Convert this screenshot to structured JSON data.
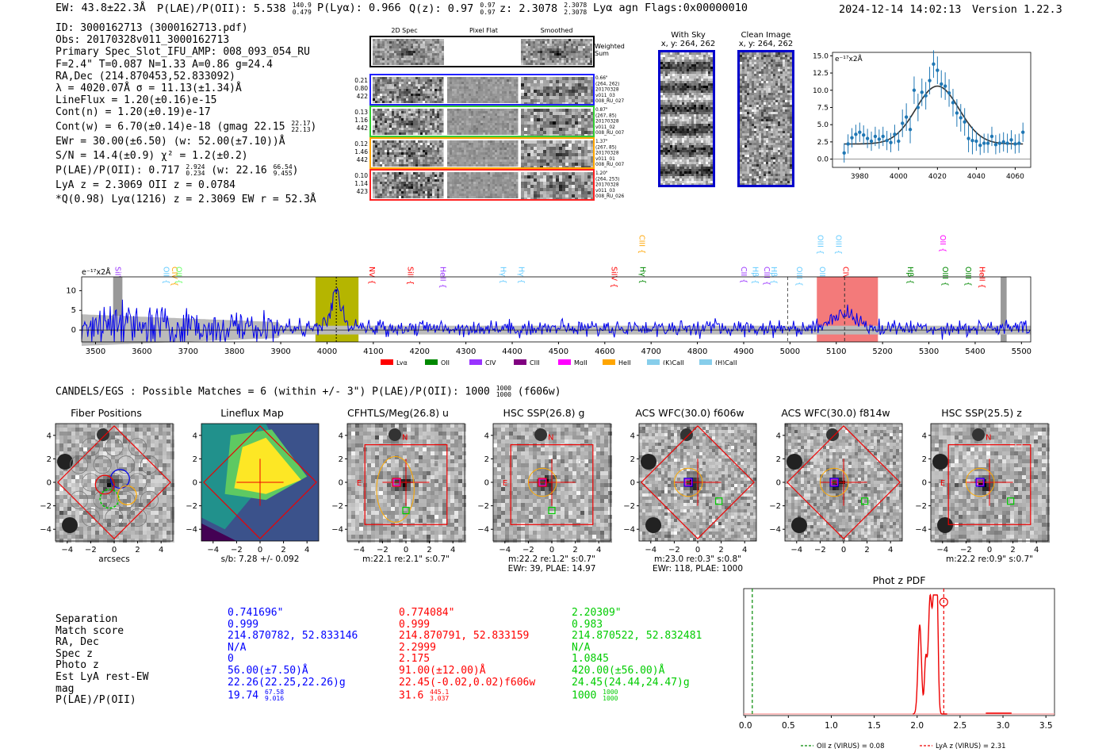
{
  "header": {
    "ew": "EW: 43.8±22.3Å",
    "plae": "P(LAE)/P(OII): 5.538",
    "plae_hi": "140.9",
    "plae_lo": "0.479",
    "plya": "P(Lyα): 0.966",
    "qz": "Q(z): 0.97",
    "qz_hi": "0.97",
    "qz_lo": "0.97",
    "z": "z: 2.3078",
    "z_hi": "2.3078",
    "z_lo": "2.3078",
    "tail": "Lyα  agn  Flags:0x00000010",
    "timestamp": "2024-12-14 14:02:13",
    "version": "Version 1.22.3"
  },
  "info": {
    "lines": [
      "ID: 3000162713 (3000162713.pdf)",
      "Obs: 20170328v011_3000162713",
      "Primary Spec_Slot_IFU_AMP: 008_093_054_RU",
      "F=2.4\"  T=0.087  N=1.33  A=0.86  g=24.4",
      "RA,Dec (214.870453,52.833092)",
      "λ = 4020.07Å  σ = 11.13(±1.34)Å",
      "LineFlux = 1.20(±0.16)e-15",
      "Cont(n) = 1.20(±0.19)e-17"
    ],
    "contw": "Cont(w) = 6.70(±0.14)e-18 (gmag 22.15",
    "contw_hi": "22.17",
    "contw_lo": "22.13",
    "ewr": "EWr = 30.00(±6.50) (w: 52.00(±7.10))Å",
    "sn": "S/N = 14.4(±0.9)  χ² = 1.2(±0.2)",
    "plae2": "P(LAE)/P(OII): 0.717",
    "plae2_hi": "2.924",
    "plae2_lo": "0.234",
    "plae2_w": "(w: 22.16",
    "plae2_w_hi": "66.54",
    "plae2_w_lo": "9.455",
    "lyaz": "LyA z = 2.3069  OII z = 0.0784",
    "qline": "*Q(0.98) Lyα(1216) z = 2.3069  EW r = 52.3Å"
  },
  "cutouts": {
    "col_headers": [
      "2D Spec",
      "Pixel Flat",
      "Smoothed"
    ],
    "weighted_label": "Weighted Sum",
    "rows": [
      {
        "left": [
          "0.21",
          "0.80",
          "422"
        ],
        "right": [
          "0.66\"",
          "(264, 262)",
          "20170328",
          "v011_03",
          "008_RU_027"
        ],
        "color": "#2020ff"
      },
      {
        "left": [
          "0.13",
          "1.16",
          "442"
        ],
        "right": [
          "0.87\"",
          "(267, 85)",
          "20170328",
          "v011_02",
          "008_RU_007"
        ],
        "color": "#33cc33"
      },
      {
        "left": [
          "0.12",
          "1.46",
          "442"
        ],
        "right": [
          "1.37\"",
          "(267, 85)",
          "20170328",
          "v011_01",
          "008_RU_007"
        ],
        "color": "#ffa500"
      },
      {
        "left": [
          "0.10",
          "1.14",
          "423"
        ],
        "right": [
          "1.20\"",
          "(264, 253)",
          "20170328",
          "v011_03",
          "008_RU_026"
        ],
        "color": "#ff2020"
      }
    ],
    "sky_title": "With Sky",
    "sky_sub": "x, y: 264, 262",
    "clean_title": "Clean Image",
    "clean_sub": "x, y: 264, 262"
  },
  "line_fit": {
    "unit": "e⁻¹⁷x2Å",
    "yticks": [
      "15.0",
      "12.5",
      "10.0",
      "7.5",
      "5.0",
      "2.5",
      "0.0"
    ],
    "xticks": [
      "3980",
      "4000",
      "4020",
      "4040",
      "4060"
    ],
    "xmin": 3966,
    "xmax": 4068,
    "ymin": -1.2,
    "ymax": 15.5,
    "model": {
      "amp": 8.4,
      "mu": 4020,
      "sigma": 11.1,
      "base": 2.2
    },
    "points": [
      [
        3972,
        0.9
      ],
      [
        3974,
        2.2
      ],
      [
        3976,
        3.1
      ],
      [
        3978,
        3.6
      ],
      [
        3980,
        3.9
      ],
      [
        3982,
        3.5
      ],
      [
        3984,
        3.0
      ],
      [
        3986,
        2.6
      ],
      [
        3988,
        3.3
      ],
      [
        3990,
        2.9
      ],
      [
        3992,
        3.3
      ],
      [
        3994,
        2.7
      ],
      [
        3996,
        2.4
      ],
      [
        3998,
        3.6
      ],
      [
        4000,
        2.6
      ],
      [
        4002,
        5.2
      ],
      [
        4004,
        6.1
      ],
      [
        4006,
        4.3
      ],
      [
        4008,
        10.0
      ],
      [
        4010,
        7.5
      ],
      [
        4012,
        9.7
      ],
      [
        4014,
        9.2
      ],
      [
        4016,
        11.4
      ],
      [
        4018,
        13.8
      ],
      [
        4020,
        12.9
      ],
      [
        4022,
        10.9
      ],
      [
        4024,
        10.6
      ],
      [
        4026,
        9.6
      ],
      [
        4028,
        8.2
      ],
      [
        4030,
        6.7
      ],
      [
        4032,
        6.0
      ],
      [
        4034,
        5.4
      ],
      [
        4036,
        3.0
      ],
      [
        4038,
        2.7
      ],
      [
        4040,
        2.6
      ],
      [
        4042,
        2.0
      ],
      [
        4044,
        2.3
      ],
      [
        4046,
        2.3
      ],
      [
        4048,
        3.3
      ],
      [
        4050,
        2.1
      ],
      [
        4052,
        2.3
      ],
      [
        4054,
        2.5
      ],
      [
        4056,
        2.3
      ],
      [
        4058,
        2.8
      ],
      [
        4060,
        2.2
      ],
      [
        4062,
        2.3
      ],
      [
        4064,
        3.9
      ]
    ]
  },
  "spectrum": {
    "unit": "e⁻¹⁷x2Å",
    "xticks": [
      "3500",
      "3600",
      "3700",
      "3800",
      "3900",
      "4000",
      "4100",
      "4200",
      "4300",
      "4400",
      "4500",
      "4600",
      "4700",
      "4800",
      "4900",
      "5000",
      "5100",
      "5200",
      "5300",
      "5400",
      "5500"
    ],
    "yticks": [
      "10",
      "5",
      "0"
    ],
    "xmin": 3470,
    "xmax": 5520,
    "ymin": -3,
    "ymax": 13.5,
    "lines": [
      {
        "label": "SiIV",
        "wave": 3548,
        "color": "#9933ff",
        "level": 1
      },
      {
        "label": "OII",
        "wave": 3652,
        "color": "#66ccff",
        "level": 1
      },
      {
        "label": "CIV",
        "wave": 3670,
        "color": "#ffa500",
        "level": 1
      },
      {
        "label": "OII",
        "wave": 3680,
        "color": "#66ff66",
        "level": 1
      },
      {
        "label": "NV",
        "wave": 4097,
        "color": "#ff0000",
        "level": 1
      },
      {
        "label": "SiII",
        "wave": 4180,
        "color": "#ff0000",
        "level": 1
      },
      {
        "label": "HeII",
        "wave": 4250,
        "color": "#9933ff",
        "level": 1
      },
      {
        "label": "Hγ",
        "wave": 4380,
        "color": "#66ccff",
        "level": 1
      },
      {
        "label": "Hγ",
        "wave": 4420,
        "color": "#66ccff",
        "level": 1
      },
      {
        "label": "SiIV",
        "wave": 4620,
        "color": "#ff0000",
        "level": 1
      },
      {
        "label": "CIII",
        "wave": 4680,
        "color": "#ffa500",
        "level": 0
      },
      {
        "label": "Hγ",
        "wave": 4682,
        "color": "#008800",
        "level": 1
      },
      {
        "label": "CII",
        "wave": 4900,
        "color": "#9933ff",
        "level": 1
      },
      {
        "label": "Hβ",
        "wave": 4925,
        "color": "#66ccff",
        "level": 1
      },
      {
        "label": "CIII",
        "wave": 4950,
        "color": "#9933ff",
        "level": 1
      },
      {
        "label": "Hβ",
        "wave": 4965,
        "color": "#66ccff",
        "level": 1
      },
      {
        "label": "OIII",
        "wave": 5020,
        "color": "#66ccff",
        "level": 1
      },
      {
        "label": "OIII",
        "wave": 5065,
        "color": "#66ccff",
        "level": 0
      },
      {
        "label": "OIII",
        "wave": 5070,
        "color": "#66ccff",
        "level": 1
      },
      {
        "label": "OIII",
        "wave": 5105,
        "color": "#66ccff",
        "level": 0
      },
      {
        "label": "CIV",
        "wave": 5120,
        "color": "#ff0000",
        "level": 1
      },
      {
        "label": "Hβ",
        "wave": 5260,
        "color": "#008800",
        "level": 1
      },
      {
        "label": "OII",
        "wave": 5330,
        "color": "#ff00ff",
        "level": 0
      },
      {
        "label": "OIII",
        "wave": 5335,
        "color": "#008800",
        "level": 1
      },
      {
        "label": "OIII",
        "wave": 5385,
        "color": "#008800",
        "level": 1
      },
      {
        "label": "HeII",
        "wave": 5415,
        "color": "#ff0000",
        "level": 1
      }
    ],
    "legend": [
      {
        "label": "Lyα",
        "color": "#ff0000"
      },
      {
        "label": "OII",
        "color": "#008800"
      },
      {
        "label": "CIV",
        "color": "#9933ff"
      },
      {
        "label": "CIII",
        "color": "#800080"
      },
      {
        "label": "MgII",
        "color": "#ff00ff"
      },
      {
        "label": "HeII",
        "color": "#ffa500"
      },
      {
        "label": "(K)CaII",
        "color": "#87ceeb"
      },
      {
        "label": "(H)CaII",
        "color": "#87ceeb"
      }
    ]
  },
  "candels": {
    "text": "CANDELS/EGS : Possible Matches = 6 (within +/- 3\")  P(LAE)/P(OII): 1000",
    "hi": "1000",
    "lo": "1000",
    "tail": "(f606w)"
  },
  "panels": [
    {
      "title": "Fiber Positions",
      "label1": "arcsecs",
      "label2": ""
    },
    {
      "title": "Lineflux Map",
      "label1": "s/b: 7.28 +/- 0.092",
      "label2": ""
    },
    {
      "title": "CFHTLS/Meg(26.8) u",
      "label1": "m:22.1  re:2.1\"  s:0.7\"",
      "label2": ""
    },
    {
      "title": "HSC SSP(26.8) g",
      "label1": "m:22.2  re:1.2\"  s:0.7\"",
      "label2": "EWr: 39, PLAE: 14.97"
    },
    {
      "title": "ACS WFC(30.0) f606w",
      "label1": "m:23.0  re:0.3\"  s:0.8\"",
      "label2": "EWr: 118, PLAE: 1000"
    },
    {
      "title": "ACS WFC(30.0) f814w",
      "label1": "",
      "label2": ""
    },
    {
      "title": "HSC SSP(25.5) z",
      "label1": "m:22.2  re:0.9\"  s:0.7\"",
      "label2": ""
    }
  ],
  "panel_ticks": [
    "4",
    "2",
    "0",
    "−2",
    "−4"
  ],
  "compass": {
    "n": "N",
    "e": "E"
  },
  "matches": {
    "labels": [
      "Separation",
      "Match score",
      "RA, Dec",
      "Spec z",
      "Photo z",
      "Est LyA rest-EW",
      "mag",
      "P(LAE)/P(OII)"
    ],
    "blue": [
      "0.741696\"",
      "0.999",
      "214.870782, 52.833146",
      "N/A",
      "0",
      "56.00(±7.50)Å",
      "22.26(22.25,22.26)g",
      "19.74"
    ],
    "blue_hi": "67.58",
    "blue_lo": "9.016",
    "red": [
      "0.774084\"",
      "0.999",
      "214.870791, 52.833159",
      "2.2999",
      "2.175",
      "91.00(±12.00)Å",
      "22.45(-0.02,0.02)f606w",
      "31.6"
    ],
    "red_hi": "445.1",
    "red_lo": "3.037",
    "green": [
      "2.20309\"",
      "0.983",
      "214.870522, 52.832481",
      "N/A",
      "1.0845",
      "420.00(±56.00)Å",
      "24.45(24.44,24.47)g",
      "1000"
    ],
    "green_hi": "1000",
    "green_lo": "1000"
  },
  "photz": {
    "title": "Phot z PDF",
    "xticks": [
      "0.0",
      "0.5",
      "1.0",
      "1.5",
      "2.0",
      "2.5",
      "3.0",
      "3.5"
    ],
    "xmin": -0.02,
    "xmax": 3.6,
    "oii_z": 0.08,
    "lya_z": 2.31,
    "legend_oii": "OII z (VIRUS) = 0.08",
    "legend_lya": "LyA z (VIRUS) = 2.31"
  }
}
